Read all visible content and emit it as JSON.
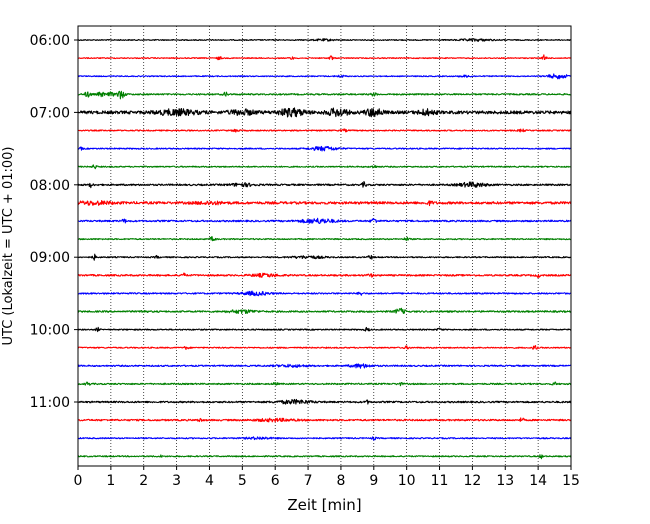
{
  "chart_data": {
    "type": "line",
    "title": "",
    "xlabel": "Zeit  [min]",
    "ylabel": "UTC (Lokalzeit = UTC + 01:00)",
    "xlim": [
      0,
      15
    ],
    "x_ticks": [
      0,
      1,
      2,
      3,
      4,
      5,
      6,
      7,
      8,
      9,
      10,
      11,
      12,
      13,
      14,
      15
    ],
    "y_tick_labels": [
      "06:00",
      "07:00",
      "08:00",
      "09:00",
      "10:00",
      "11:00"
    ],
    "y_tick_rows": [
      0,
      4,
      8,
      12,
      16,
      20
    ],
    "vertical_grid": true,
    "grid_style": "dotted",
    "row_minutes": 15,
    "row_colors": [
      "#000000",
      "#ff0000",
      "#0000ff",
      "#008000"
    ],
    "traces": [
      {
        "start": "06:00",
        "amplitude": 0.5,
        "events": [
          {
            "t": 12.1,
            "amp": 1.0,
            "width": 0.5
          },
          {
            "t": 7.5,
            "amp": 0.8,
            "width": 0.3
          }
        ]
      },
      {
        "start": "06:15",
        "amplitude": 0.5,
        "events": [
          {
            "t": 14.2,
            "amp": 3.5,
            "width": 0.06
          },
          {
            "t": 7.7,
            "amp": 2.4,
            "width": 0.06
          },
          {
            "t": 4.3,
            "amp": 1.8,
            "width": 0.06
          },
          {
            "t": 6.5,
            "amp": 1.3,
            "width": 0.06
          }
        ]
      },
      {
        "start": "06:30",
        "amplitude": 0.5,
        "events": [
          {
            "t": 14.6,
            "amp": 2.2,
            "width": 0.3
          },
          {
            "t": 11.8,
            "amp": 0.8,
            "width": 0.2
          },
          {
            "t": 8.0,
            "amp": 0.8,
            "width": 0.15
          }
        ]
      },
      {
        "start": "06:45",
        "amplitude": 0.7,
        "events": [
          {
            "t": 1.3,
            "amp": 4.0,
            "width": 0.12
          },
          {
            "t": 0.3,
            "amp": 2.5,
            "width": 0.1
          },
          {
            "t": 0.7,
            "amp": 2.2,
            "width": 0.1
          },
          {
            "t": 1.0,
            "amp": 1.8,
            "width": 0.1
          },
          {
            "t": 4.5,
            "amp": 1.8,
            "width": 0.08
          },
          {
            "t": 9.0,
            "amp": 1.5,
            "width": 0.08
          }
        ]
      },
      {
        "start": "07:00",
        "amplitude": 1.5,
        "events": [
          {
            "t": 3.0,
            "amp": 2.5,
            "width": 0.6
          },
          {
            "t": 6.5,
            "amp": 3.5,
            "width": 0.4
          },
          {
            "t": 7.9,
            "amp": 3.5,
            "width": 0.3
          },
          {
            "t": 9.0,
            "amp": 3.8,
            "width": 0.25
          },
          {
            "t": 10.6,
            "amp": 2.5,
            "width": 0.25
          },
          {
            "t": 5.0,
            "amp": 2.2,
            "width": 0.4
          }
        ]
      },
      {
        "start": "07:15",
        "amplitude": 0.6,
        "events": [
          {
            "t": 4.8,
            "amp": 1.6,
            "width": 0.08
          },
          {
            "t": 13.5,
            "amp": 1.2,
            "width": 0.1
          },
          {
            "t": 8.1,
            "amp": 1.0,
            "width": 0.1
          }
        ]
      },
      {
        "start": "07:30",
        "amplitude": 0.6,
        "events": [
          {
            "t": 7.5,
            "amp": 2.0,
            "width": 0.4
          },
          {
            "t": 0.1,
            "amp": 1.2,
            "width": 0.05
          }
        ]
      },
      {
        "start": "07:45",
        "amplitude": 0.6,
        "events": [
          {
            "t": 0.5,
            "amp": 2.2,
            "width": 0.06
          },
          {
            "t": 9.0,
            "amp": 1.0,
            "width": 0.1
          }
        ]
      },
      {
        "start": "08:00",
        "amplitude": 0.8,
        "events": [
          {
            "t": 12.0,
            "amp": 2.2,
            "width": 0.4
          },
          {
            "t": 0.4,
            "amp": 2.2,
            "width": 0.06
          },
          {
            "t": 8.7,
            "amp": 2.5,
            "width": 0.06
          },
          {
            "t": 5.0,
            "amp": 1.5,
            "width": 0.35
          }
        ]
      },
      {
        "start": "08:15",
        "amplitude": 1.2,
        "events": [
          {
            "t": 0.5,
            "amp": 1.5,
            "width": 0.5
          },
          {
            "t": 10.7,
            "amp": 1.5,
            "width": 0.1
          },
          {
            "t": 4.0,
            "amp": 1.2,
            "width": 0.4
          }
        ]
      },
      {
        "start": "08:30",
        "amplitude": 0.8,
        "events": [
          {
            "t": 7.3,
            "amp": 2.2,
            "width": 0.5
          },
          {
            "t": 9.0,
            "amp": 2.6,
            "width": 0.08
          },
          {
            "t": 1.4,
            "amp": 2.0,
            "width": 0.06
          }
        ]
      },
      {
        "start": "08:45",
        "amplitude": 0.6,
        "events": [
          {
            "t": 4.1,
            "amp": 2.2,
            "width": 0.08
          },
          {
            "t": 10.0,
            "amp": 1.5,
            "width": 0.08
          }
        ]
      },
      {
        "start": "09:00",
        "amplitude": 0.6,
        "events": [
          {
            "t": 0.5,
            "amp": 2.5,
            "width": 0.06
          },
          {
            "t": 8.9,
            "amp": 2.3,
            "width": 0.06
          },
          {
            "t": 7.0,
            "amp": 1.2,
            "width": 0.5
          },
          {
            "t": 2.4,
            "amp": 1.2,
            "width": 0.06
          }
        ]
      },
      {
        "start": "09:15",
        "amplitude": 0.8,
        "events": [
          {
            "t": 3.2,
            "amp": 2.3,
            "width": 0.06
          },
          {
            "t": 5.7,
            "amp": 1.4,
            "width": 0.4
          },
          {
            "t": 14.0,
            "amp": 1.6,
            "width": 0.06
          },
          {
            "t": 8.9,
            "amp": 1.5,
            "width": 0.08
          }
        ]
      },
      {
        "start": "09:30",
        "amplitude": 0.7,
        "events": [
          {
            "t": 5.4,
            "amp": 1.8,
            "width": 0.4
          },
          {
            "t": 8.6,
            "amp": 2.2,
            "width": 0.06
          }
        ]
      },
      {
        "start": "09:45",
        "amplitude": 0.8,
        "events": [
          {
            "t": 9.8,
            "amp": 2.6,
            "width": 0.15
          },
          {
            "t": 5.0,
            "amp": 1.5,
            "width": 0.4
          },
          {
            "t": 2.0,
            "amp": 1.4,
            "width": 0.08
          }
        ]
      },
      {
        "start": "10:00",
        "amplitude": 0.6,
        "events": [
          {
            "t": 0.6,
            "amp": 1.8,
            "width": 0.06
          },
          {
            "t": 8.8,
            "amp": 2.2,
            "width": 0.06
          },
          {
            "t": 11.0,
            "amp": 1.2,
            "width": 0.08
          }
        ]
      },
      {
        "start": "10:15",
        "amplitude": 0.6,
        "events": [
          {
            "t": 13.9,
            "amp": 2.5,
            "width": 0.06
          },
          {
            "t": 3.3,
            "amp": 1.6,
            "width": 0.06
          },
          {
            "t": 10.0,
            "amp": 1.2,
            "width": 0.08
          }
        ]
      },
      {
        "start": "10:30",
        "amplitude": 0.7,
        "events": [
          {
            "t": 8.6,
            "amp": 1.8,
            "width": 0.3
          },
          {
            "t": 6.5,
            "amp": 1.0,
            "width": 0.5
          }
        ]
      },
      {
        "start": "10:45",
        "amplitude": 0.7,
        "events": [
          {
            "t": 0.3,
            "amp": 2.2,
            "width": 0.06
          },
          {
            "t": 6.0,
            "amp": 1.6,
            "width": 0.06
          },
          {
            "t": 14.5,
            "amp": 1.6,
            "width": 0.06
          },
          {
            "t": 9.8,
            "amp": 1.2,
            "width": 0.08
          }
        ]
      },
      {
        "start": "11:00",
        "amplitude": 0.8,
        "events": [
          {
            "t": 6.6,
            "amp": 1.8,
            "width": 0.5
          },
          {
            "t": 8.8,
            "amp": 1.5,
            "width": 0.06
          }
        ]
      },
      {
        "start": "11:15",
        "amplitude": 0.8,
        "events": [
          {
            "t": 6.0,
            "amp": 1.2,
            "width": 0.6
          },
          {
            "t": 13.5,
            "amp": 2.0,
            "width": 0.06
          },
          {
            "t": 3.7,
            "amp": 1.6,
            "width": 0.06
          }
        ]
      },
      {
        "start": "11:30",
        "amplitude": 0.6,
        "events": [
          {
            "t": 9.0,
            "amp": 1.5,
            "width": 0.06
          },
          {
            "t": 5.5,
            "amp": 1.0,
            "width": 0.4
          }
        ]
      },
      {
        "start": "11:45",
        "amplitude": 0.6,
        "events": [
          {
            "t": 14.1,
            "amp": 1.8,
            "width": 0.06
          },
          {
            "t": 2.5,
            "amp": 1.0,
            "width": 0.06
          }
        ]
      }
    ]
  }
}
